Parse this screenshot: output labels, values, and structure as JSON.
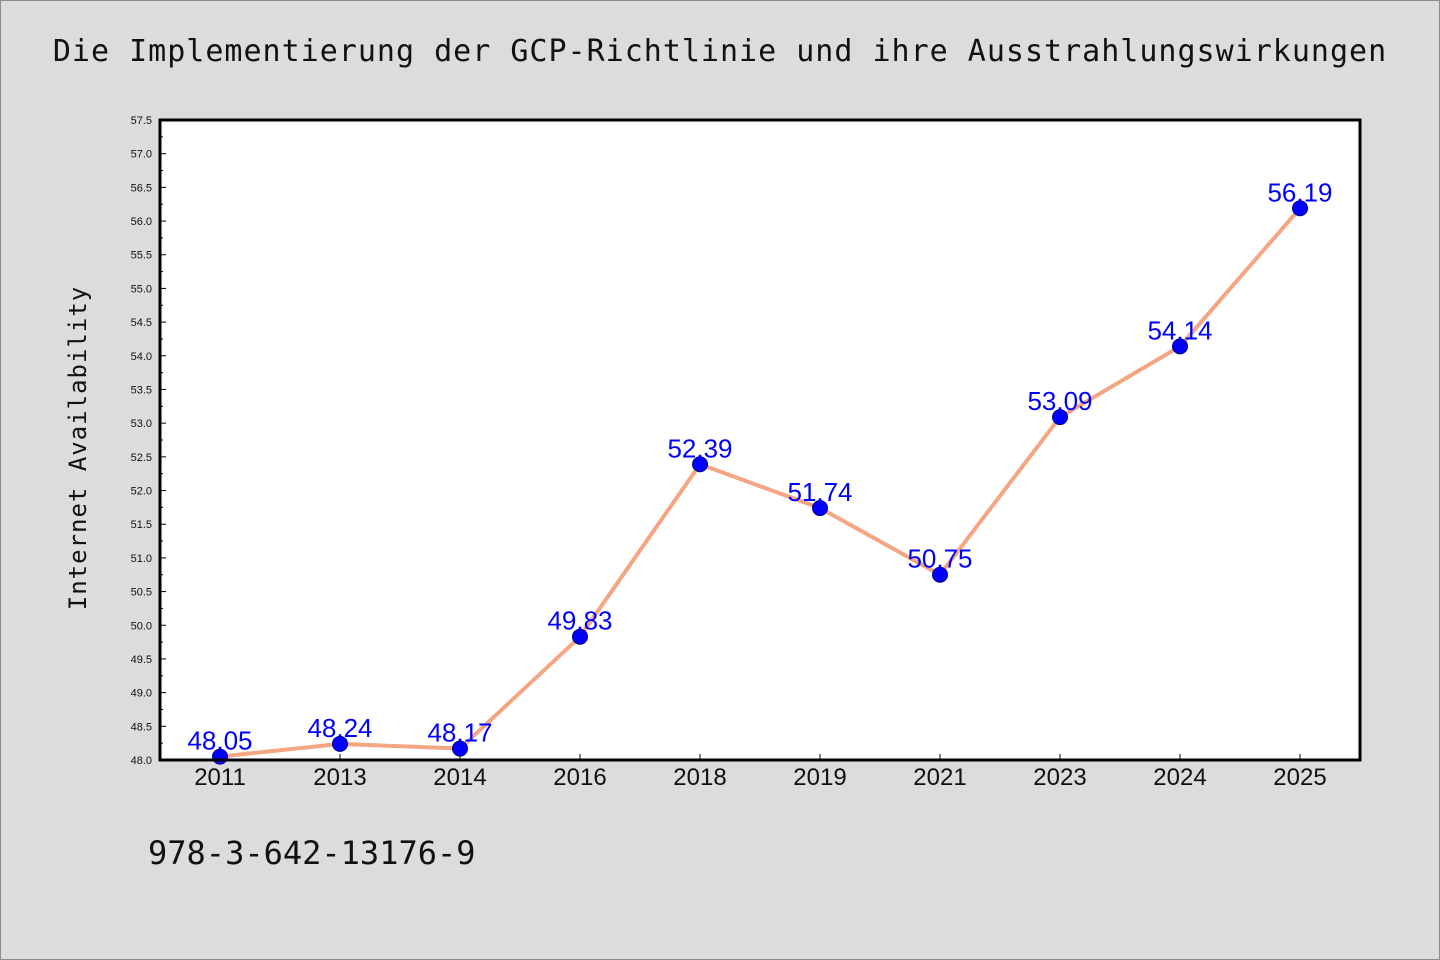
{
  "title": "Die Implementierung der GCP-Richtlinie und ihre Ausstrahlungswirkungen",
  "isbn": "978-3-642-13176-9",
  "colors": {
    "background": "#dcdcdc",
    "plot_background": "#ffffff",
    "line": "#f4a582",
    "marker": "#0000ff",
    "label": "#0000ff"
  },
  "chart_data": {
    "type": "line",
    "title": "Die Implementierung der GCP-Richtlinie und ihre Ausstrahlungswirkungen",
    "xlabel": "",
    "ylabel": "Internet Availability",
    "categories": [
      "2011",
      "2013",
      "2014",
      "2016",
      "2018",
      "2019",
      "2021",
      "2023",
      "2024",
      "2025"
    ],
    "series": [
      {
        "values": [
          48.05,
          48.24,
          48.17,
          49.83,
          52.39,
          51.74,
          50.75,
          53.09,
          54.14,
          56.19
        ]
      }
    ],
    "data_labels": [
      "48.05",
      "48.24",
      "48.17",
      "49.83",
      "52.39",
      "51.74",
      "50.75",
      "53.09",
      "54.14",
      "56.19"
    ],
    "ylim": [
      48.0,
      57.5
    ],
    "yticks": [
      "48.0",
      "48.5",
      "49.0",
      "49.5",
      "50.0",
      "50.5",
      "51.0",
      "51.5",
      "52.0",
      "52.5",
      "53.0",
      "53.5",
      "54.0",
      "54.5",
      "55.0",
      "55.5",
      "56.0",
      "56.5",
      "57.0",
      "57.5"
    ],
    "grid": false,
    "legend": "none"
  }
}
